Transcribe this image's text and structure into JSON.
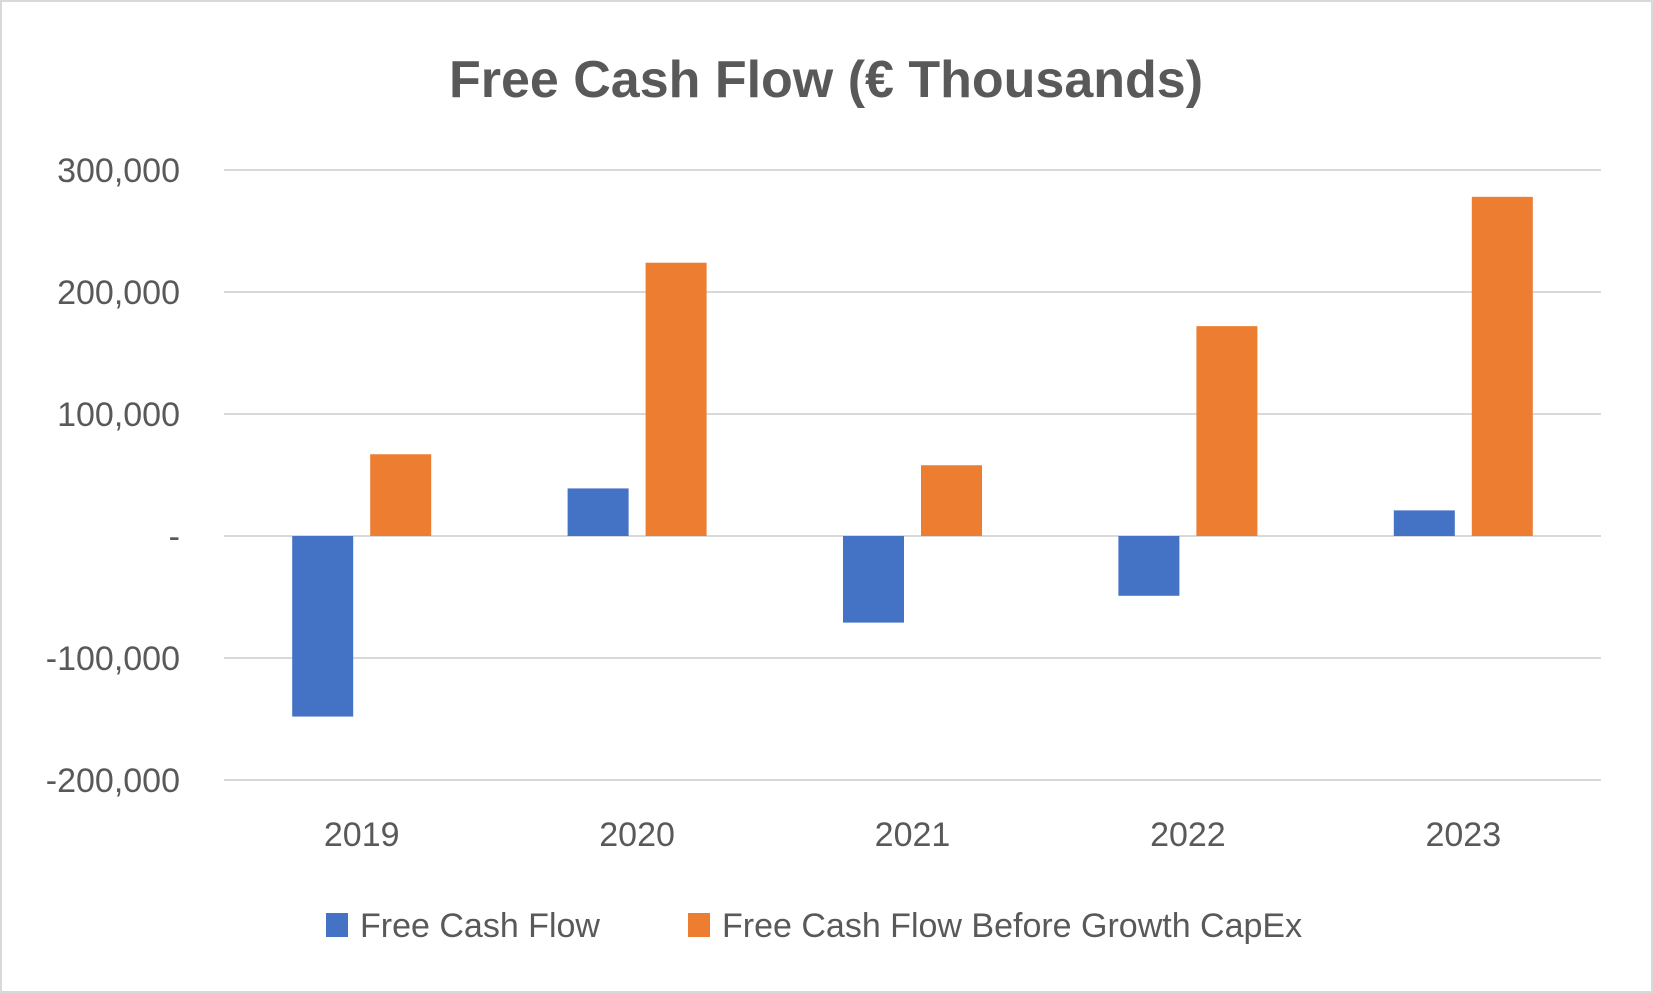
{
  "chart_data": {
    "type": "bar",
    "title": "Free Cash Flow (€ Thousands)",
    "xlabel": "",
    "ylabel": "",
    "categories": [
      "2019",
      "2020",
      "2021",
      "2022",
      "2023"
    ],
    "series": [
      {
        "name": "Free Cash Flow",
        "color": "#4472c4",
        "values": [
          -148000,
          39000,
          -71000,
          -49000,
          21000
        ]
      },
      {
        "name": "Free Cash Flow Before Growth CapEx",
        "color": "#ed7d31",
        "values": [
          67000,
          224000,
          58000,
          172000,
          278000
        ]
      }
    ],
    "ylim": [
      -200000,
      300000
    ],
    "yticks": [
      {
        "value": 300000,
        "label": "300,000"
      },
      {
        "value": 200000,
        "label": "200,000"
      },
      {
        "value": 100000,
        "label": "100,000"
      },
      {
        "value": 0,
        "label": "-"
      },
      {
        "value": -100000,
        "label": "-100,000"
      },
      {
        "value": -200000,
        "label": "-200,000"
      }
    ],
    "grid": true,
    "legend_position": "bottom"
  }
}
